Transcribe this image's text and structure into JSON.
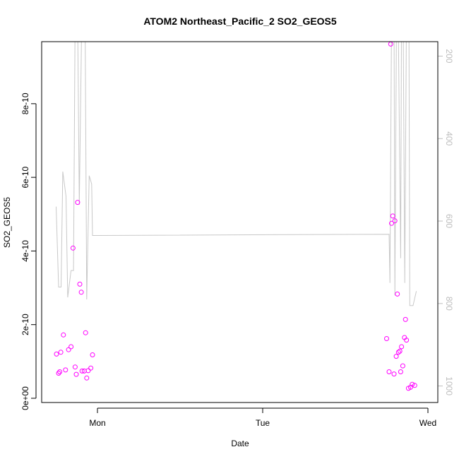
{
  "chart_data": {
    "type": "scatter",
    "title": "ATOM2 Northeast_Pacific_2 SO2_GEOS5",
    "xlabel": "Date",
    "ylabel": "SO2_GEOS5",
    "x_range_days": [
      -0.25,
      2.05
    ],
    "x_ticks": [
      {
        "value": 0,
        "label": "Mon"
      },
      {
        "value": 1,
        "label": "Tue"
      },
      {
        "value": 2,
        "label": "Wed"
      }
    ],
    "ylim": [
      0,
      9.8e-10
    ],
    "y_ticks": [
      {
        "value": 0,
        "label": "0e+00"
      },
      {
        "value": 2e-10,
        "label": "2e-10"
      },
      {
        "value": 4e-10,
        "label": "4e-10"
      },
      {
        "value": 6e-10,
        "label": "6e-10"
      },
      {
        "value": 8e-10,
        "label": "8e-10"
      }
    ],
    "y2_range": [
      1040,
      165
    ],
    "y2_ticks": [
      {
        "value": 200,
        "label": "200"
      },
      {
        "value": 400,
        "label": "400"
      },
      {
        "value": 600,
        "label": "600"
      },
      {
        "value": 800,
        "label": "800"
      },
      {
        "value": 1000,
        "label": "1000"
      }
    ],
    "point_color": "#ff00ff",
    "line_color": "#c8c8c8",
    "points": [
      {
        "x": -0.248,
        "y": 1.2e-10
      },
      {
        "x": -0.235,
        "y": 6.8e-11
      },
      {
        "x": -0.228,
        "y": 7.2e-11
      },
      {
        "x": -0.222,
        "y": 1.25e-10
      },
      {
        "x": -0.206,
        "y": 1.72e-10
      },
      {
        "x": -0.193,
        "y": 7.7e-11
      },
      {
        "x": -0.175,
        "y": 1.32e-10
      },
      {
        "x": -0.16,
        "y": 1.4e-10
      },
      {
        "x": -0.148,
        "y": 4.08e-10
      },
      {
        "x": -0.135,
        "y": 8.5e-11
      },
      {
        "x": -0.128,
        "y": 6.5e-11
      },
      {
        "x": -0.12,
        "y": 5.32e-10
      },
      {
        "x": -0.107,
        "y": 3.1e-10
      },
      {
        "x": -0.098,
        "y": 2.88e-10
      },
      {
        "x": -0.093,
        "y": 7.4e-11
      },
      {
        "x": -0.08,
        "y": 7.4e-11
      },
      {
        "x": -0.072,
        "y": 1.78e-10
      },
      {
        "x": -0.065,
        "y": 5.5e-11
      },
      {
        "x": -0.056,
        "y": 7.5e-11
      },
      {
        "x": -0.04,
        "y": 8.2e-11
      },
      {
        "x": -0.03,
        "y": 1.18e-10
      },
      {
        "x": 1.75,
        "y": 1.62e-10
      },
      {
        "x": 1.765,
        "y": 7.2e-11
      },
      {
        "x": 1.775,
        "y": 9.62e-10
      },
      {
        "x": 1.78,
        "y": 4.75e-10
      },
      {
        "x": 1.787,
        "y": 4.95e-10
      },
      {
        "x": 1.795,
        "y": 6.6e-11
      },
      {
        "x": 1.8,
        "y": 4.82e-10
      },
      {
        "x": 1.808,
        "y": 1.14e-10
      },
      {
        "x": 1.815,
        "y": 2.83e-10
      },
      {
        "x": 1.822,
        "y": 1.25e-10
      },
      {
        "x": 1.83,
        "y": 1.28e-10
      },
      {
        "x": 1.835,
        "y": 7.2e-11
      },
      {
        "x": 1.84,
        "y": 1.4e-10
      },
      {
        "x": 1.848,
        "y": 8.8e-11
      },
      {
        "x": 1.858,
        "y": 1.65e-10
      },
      {
        "x": 1.864,
        "y": 2.14e-10
      },
      {
        "x": 1.87,
        "y": 1.58e-10
      },
      {
        "x": 1.882,
        "y": 2.7e-11
      },
      {
        "x": 1.895,
        "y": 3e-11
      },
      {
        "x": 1.905,
        "y": 3.8e-11
      },
      {
        "x": 1.92,
        "y": 3.5e-11
      }
    ],
    "pressure_line": [
      [
        -0.25,
        565
      ],
      [
        -0.235,
        760
      ],
      [
        -0.22,
        760
      ],
      [
        -0.21,
        480
      ],
      [
        -0.19,
        540
      ],
      [
        -0.18,
        785
      ],
      [
        -0.16,
        720
      ],
      [
        -0.145,
        720
      ],
      [
        -0.135,
        100
      ],
      [
        -0.12,
        100
      ],
      [
        -0.11,
        560
      ],
      [
        -0.095,
        100
      ],
      [
        -0.075,
        100
      ],
      [
        -0.065,
        790
      ],
      [
        -0.05,
        490
      ],
      [
        -0.035,
        510
      ],
      [
        -0.03,
        635
      ],
      [
        1.765,
        632
      ],
      [
        1.77,
        750
      ],
      [
        1.78,
        100
      ],
      [
        1.795,
        100
      ],
      [
        1.8,
        780
      ],
      [
        1.81,
        100
      ],
      [
        1.82,
        100
      ],
      [
        1.835,
        690
      ],
      [
        1.84,
        100
      ],
      [
        1.85,
        100
      ],
      [
        1.86,
        750
      ],
      [
        1.87,
        100
      ],
      [
        1.885,
        100
      ],
      [
        1.89,
        805
      ],
      [
        1.91,
        805
      ],
      [
        1.93,
        770
      ]
    ]
  }
}
